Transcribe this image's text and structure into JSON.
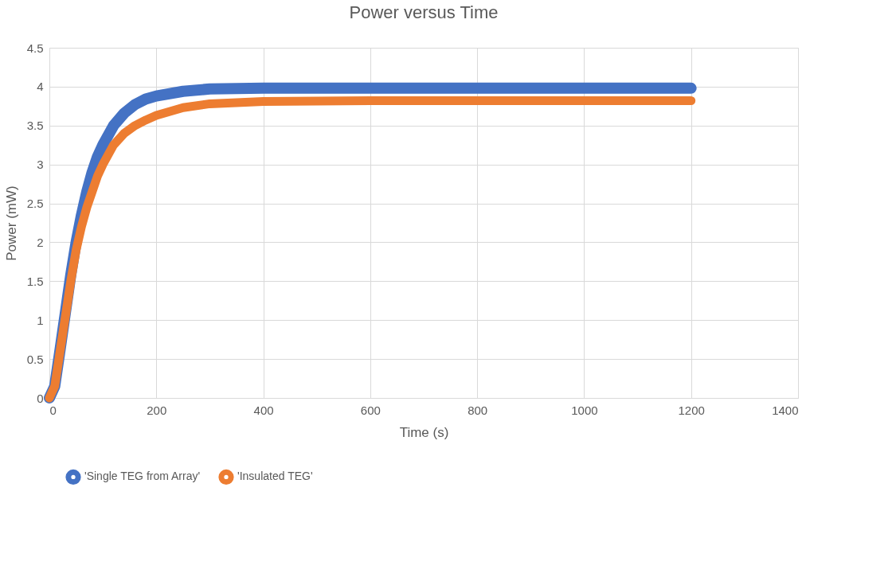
{
  "chart_data": {
    "type": "line",
    "title": "Power versus Time",
    "xlabel": "Time (s)",
    "ylabel": "Power (mW)",
    "series": [
      {
        "name": "'Single TEG from Array'",
        "color": "#4472c4",
        "x": [
          0,
          10,
          20,
          30,
          40,
          50,
          60,
          70,
          80,
          90,
          100,
          120,
          140,
          160,
          180,
          200,
          250,
          300,
          400,
          600,
          1200
        ],
        "values": [
          0,
          0.15,
          0.62,
          1.1,
          1.58,
          2.0,
          2.35,
          2.65,
          2.9,
          3.1,
          3.25,
          3.5,
          3.66,
          3.77,
          3.84,
          3.88,
          3.94,
          3.97,
          3.98,
          3.98,
          3.98
        ]
      },
      {
        "name": "'Insulated TEG'",
        "color": "#ed7d31",
        "x": [
          0,
          10,
          20,
          30,
          40,
          50,
          60,
          70,
          80,
          90,
          100,
          120,
          140,
          160,
          180,
          200,
          250,
          300,
          400,
          600,
          1200
        ],
        "values": [
          0,
          0.15,
          0.6,
          1.05,
          1.5,
          1.9,
          2.2,
          2.45,
          2.65,
          2.85,
          3.0,
          3.25,
          3.4,
          3.5,
          3.57,
          3.63,
          3.73,
          3.78,
          3.81,
          3.82,
          3.82
        ]
      }
    ],
    "xlim": [
      0,
      1400
    ],
    "xticks": [
      0,
      200,
      400,
      600,
      800,
      1000,
      1200,
      1400
    ],
    "ylim": [
      0,
      4.5
    ],
    "yticks": [
      0,
      0.5,
      1,
      1.5,
      2,
      2.5,
      3,
      3.5,
      4,
      4.5
    ],
    "grid": true,
    "legend": "bottom",
    "marker": "none",
    "line_style": "solid"
  }
}
